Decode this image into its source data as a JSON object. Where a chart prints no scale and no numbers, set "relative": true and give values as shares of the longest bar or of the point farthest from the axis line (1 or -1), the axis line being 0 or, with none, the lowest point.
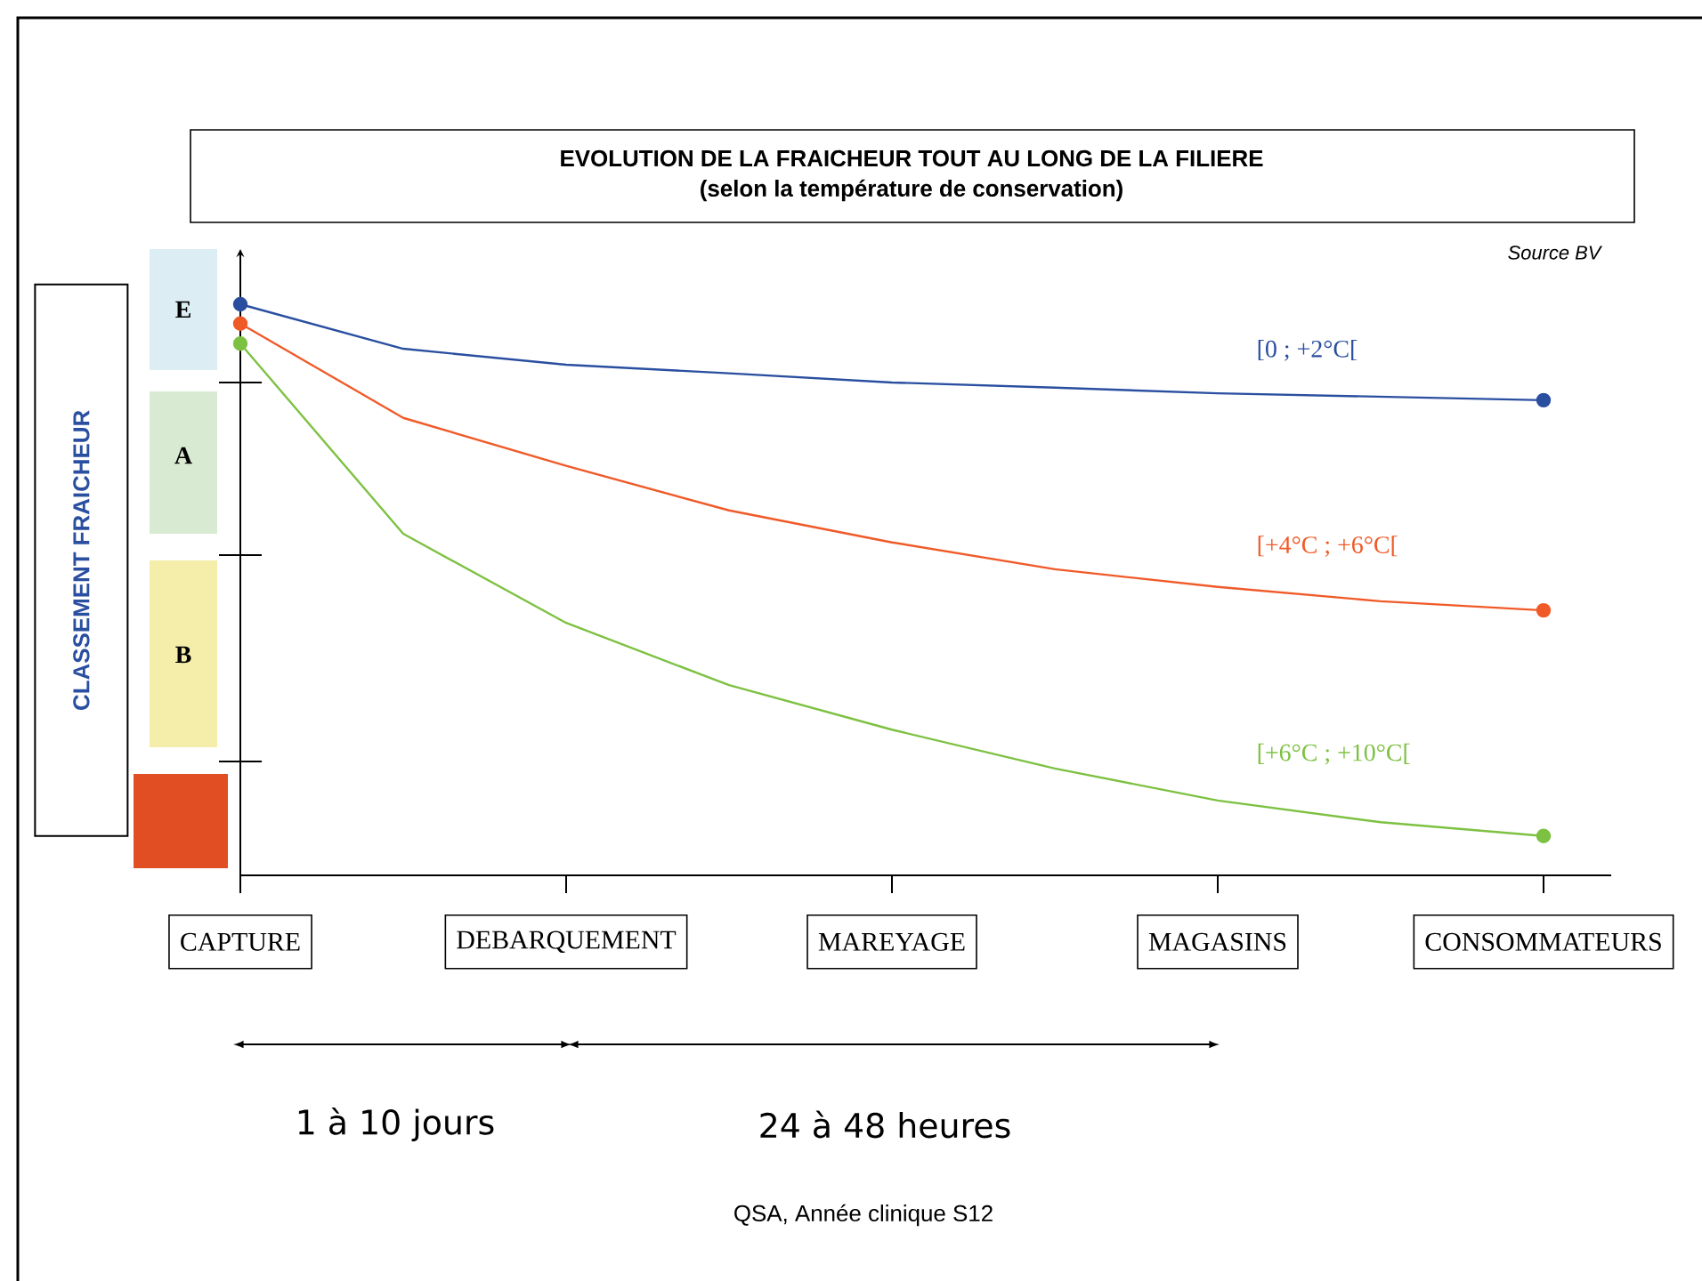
{
  "chart_data": {
    "type": "line",
    "title": "EVOLUTION DE LA FRAICHEUR TOUT AU LONG DE LA FILIERE",
    "subtitle": "(selon la température de conservation)",
    "ylabel": "CLASSEMENT FRAICHEUR",
    "categories": [
      "CAPTURE",
      null,
      "DEBARQUEMENT",
      null,
      "MAREYAGE",
      null,
      "MAGASINS",
      null,
      "CONSOMMATEURS"
    ],
    "relative": true,
    "series": [
      {
        "name": "[0 ; +2°C[",
        "color": "#2a4fa0",
        "values": [
          1.0,
          0.922,
          0.894,
          0.879,
          0.863,
          0.854,
          0.844,
          0.838,
          0.832
        ]
      },
      {
        "name": "[+4°C ; +6°C[",
        "color": "#f05a28",
        "values": [
          0.966,
          0.801,
          0.717,
          0.639,
          0.583,
          0.536,
          0.505,
          0.48,
          0.464
        ]
      },
      {
        "name": "[+6°C ; +10°C[",
        "color": "#7dc142",
        "values": [
          0.931,
          0.598,
          0.442,
          0.333,
          0.255,
          0.187,
          0.131,
          0.093,
          0.069
        ]
      }
    ],
    "annotations": [
      "E",
      "A",
      "B",
      "Source BV",
      "1 à 10 jours",
      "24 à 48 heures",
      "QSA, Année clinique S12"
    ]
  }
}
